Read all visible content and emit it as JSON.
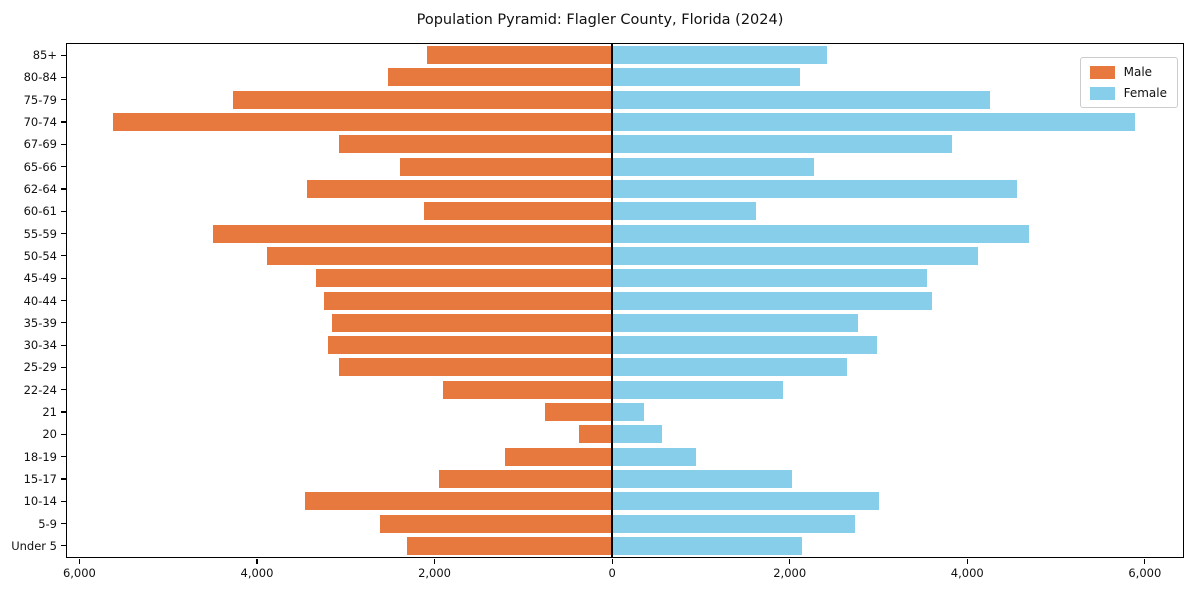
{
  "chart_data": {
    "type": "bar",
    "variant": "population-pyramid",
    "orientation": "horizontal",
    "title": "Population Pyramid: Flagler County, Florida (2024)",
    "categories": [
      "85+",
      "80-84",
      "75-79",
      "70-74",
      "67-69",
      "65-66",
      "62-64",
      "60-61",
      "55-59",
      "50-54",
      "45-49",
      "40-44",
      "35-39",
      "30-34",
      "25-29",
      "22-24",
      "21",
      "20",
      "18-19",
      "15-17",
      "10-14",
      "5-9",
      "Under 5"
    ],
    "series": [
      {
        "name": "Male",
        "side": "left",
        "color": "#e8793e",
        "values": [
          2080,
          2520,
          4270,
          5620,
          3080,
          2390,
          3440,
          2120,
          4490,
          3890,
          3330,
          3250,
          3150,
          3200,
          3080,
          1900,
          760,
          370,
          1210,
          1950,
          3460,
          2620,
          2310
        ]
      },
      {
        "name": "Female",
        "side": "right",
        "color": "#87ceeb",
        "values": [
          2420,
          2120,
          4260,
          5890,
          3830,
          2270,
          4560,
          1620,
          4700,
          4120,
          3550,
          3600,
          2770,
          2980,
          2640,
          1930,
          360,
          560,
          950,
          2030,
          3010,
          2730,
          2140
        ]
      }
    ],
    "x_axis": {
      "tick_values": [
        -6000,
        -4000,
        -2000,
        0,
        2000,
        4000,
        6000
      ],
      "tick_labels": [
        "6,000",
        "4,000",
        "2,000",
        "0",
        "2,000",
        "4,000",
        "6,000"
      ],
      "xlim": [
        -6140,
        6430
      ],
      "note": "left side shows Male counts as absolute values"
    },
    "y_axis": {
      "label_order": "oldest age group at top, youngest at bottom"
    },
    "legend_position": "upper right",
    "grid": false,
    "zero_line_color": "#000000",
    "background_color": "#ffffff"
  }
}
